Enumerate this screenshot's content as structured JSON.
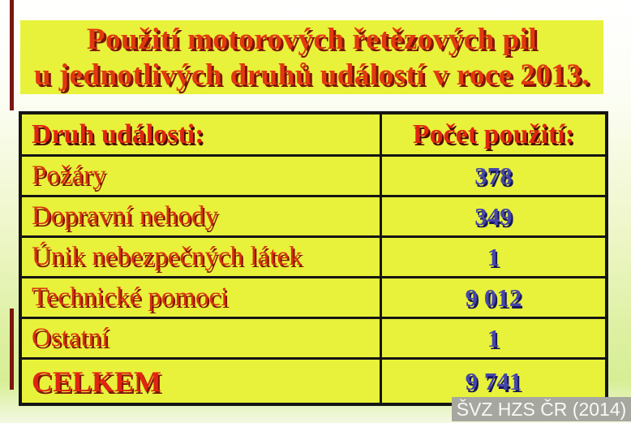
{
  "slide": {
    "title_line1": "Použití motorových řetězových pil",
    "title_line2": "u jednotlivých druhů událostí v roce 2013.",
    "watermark": "ŠVZ HZS ČR (2014)"
  },
  "table": {
    "headers": {
      "event_type": "Druh události:",
      "usage_count": "Počet použití:"
    },
    "rows": [
      {
        "label": "Požáry",
        "value": "378"
      },
      {
        "label": "Dopravní nehody",
        "value": "349"
      },
      {
        "label": "Únik nebezpečných látek",
        "value": "1"
      },
      {
        "label": "Technické pomoci",
        "value": "9 012"
      },
      {
        "label": "Ostatní",
        "value": "1"
      },
      {
        "label": "CELKEM",
        "value": "9 741",
        "is_total": true
      }
    ]
  },
  "chart_data": {
    "type": "table",
    "title": "Použití motorových řetězových pil u jednotlivých druhů událostí v roce 2013.",
    "columns": [
      "Druh události:",
      "Počet použití:"
    ],
    "categories": [
      "Požáry",
      "Dopravní nehody",
      "Únik nebezpečných látek",
      "Technické pomoci",
      "Ostatní"
    ],
    "values": [
      378,
      349,
      1,
      9012,
      1
    ],
    "total_label": "CELKEM",
    "total_value": 9741
  },
  "colors": {
    "slide_yellow": "#e8f23a",
    "title_red": "#e2390e",
    "shadow_maroon": "#7e150a",
    "value_blue": "#4646aa",
    "table_border": "#151515",
    "watermark_gray": "#a6a79f",
    "left_artifact_red": "#7b150f"
  }
}
